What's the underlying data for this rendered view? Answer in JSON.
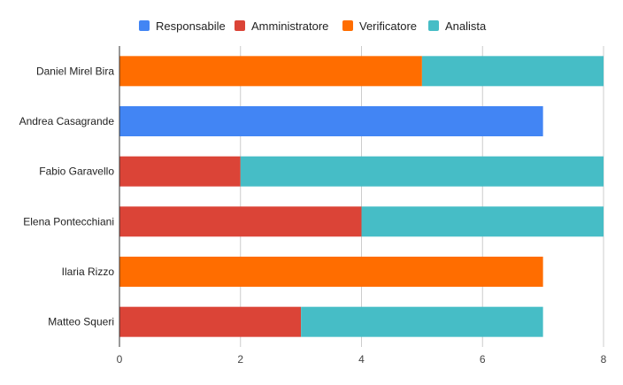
{
  "chart_data": {
    "type": "bar",
    "orientation": "horizontal",
    "stacked": true,
    "title": "",
    "xlabel": "",
    "ylabel": "",
    "categories": [
      "Daniel Mirel Bira",
      "Andrea Casagrande",
      "Fabio Garavello",
      "Elena Pontecchiani",
      "Ilaria Rizzo",
      "Matteo Squeri"
    ],
    "series": [
      {
        "name": "Responsabile",
        "color": "#4285f4",
        "values": [
          0,
          7,
          0,
          0,
          0,
          0
        ]
      },
      {
        "name": "Amministratore",
        "color": "#db4437",
        "values": [
          0,
          0,
          2,
          4,
          0,
          3
        ]
      },
      {
        "name": "Verificatore",
        "color": "#ff6d00",
        "values": [
          5,
          0,
          0,
          0,
          7,
          0
        ]
      },
      {
        "name": "Analista",
        "color": "#46bdc6",
        "values": [
          3,
          0,
          6,
          4,
          0,
          4
        ]
      }
    ],
    "xlim": [
      0,
      8
    ],
    "xticks": [
      "0",
      "2",
      "4",
      "6",
      "8"
    ],
    "grid": true,
    "legend_position": "top"
  }
}
